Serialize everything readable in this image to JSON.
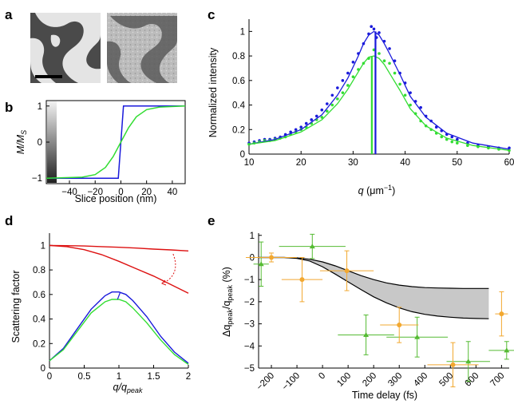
{
  "panel_labels": {
    "a": "a",
    "b": "b",
    "c": "c",
    "d": "d",
    "e": "e"
  },
  "colors": {
    "blue": "#1a1adb",
    "green": "#33dd33",
    "red": "#dd1111",
    "orange": "#f2a830",
    "dgreen": "#55bb33",
    "band": "#c8c8c8"
  },
  "chart_data": [
    {
      "panel": "b",
      "type": "line",
      "xlabel": "Slice position (nm)",
      "ylabel": "M/M_S",
      "ylabel_main": "M/M",
      "ylabel_sub": "S",
      "xlim": [
        -58,
        50
      ],
      "ylim": [
        -1.15,
        1.15
      ],
      "xticks": [
        -40,
        -20,
        0,
        20,
        40
      ],
      "xtick_labels": [
        "−40",
        "−20",
        "0",
        "20",
        "40"
      ],
      "yticks": [
        -1,
        0,
        1
      ],
      "ytick_labels": [
        "−1",
        "0",
        "1"
      ],
      "series": [
        {
          "color": "blue",
          "x": [
            -58,
            -2,
            2,
            50
          ],
          "y": [
            -1,
            -1,
            1,
            1
          ]
        },
        {
          "color": "green",
          "x": [
            -58,
            -30,
            -20,
            -12,
            -6,
            0,
            6,
            12,
            20,
            30,
            50
          ],
          "y": [
            -1,
            -0.97,
            -0.9,
            -0.7,
            -0.4,
            0,
            0.4,
            0.7,
            0.9,
            0.97,
            1
          ]
        }
      ]
    },
    {
      "panel": "c",
      "type": "scatter+line",
      "xlabel": "q (μm⁻¹)",
      "xlabel_q": "q",
      "xlabel_unit": "(μm",
      "ylabel": "Normalized intensity",
      "xlim": [
        10,
        60
      ],
      "ylim": [
        0,
        1.1
      ],
      "xticks": [
        10,
        20,
        30,
        40,
        50,
        60
      ],
      "xtick_labels": [
        "10",
        "20",
        "30",
        "40",
        "50",
        "60"
      ],
      "yticks": [
        0,
        0.2,
        0.4,
        0.6,
        0.8,
        1
      ],
      "ytick_labels": [
        "0",
        "0.2",
        "0.4",
        "0.6",
        "0.8",
        "1"
      ],
      "peak_lines": [
        {
          "color": "blue",
          "x": 34.3,
          "y": 1.0
        },
        {
          "color": "green",
          "x": 33.6,
          "y": 0.8
        }
      ],
      "series": [
        {
          "color": "blue",
          "kind": "fit",
          "x": [
            10,
            15,
            20,
            24,
            27,
            29,
            31,
            32,
            33,
            34,
            35,
            36,
            37,
            39,
            41,
            44,
            48,
            53,
            60
          ],
          "y": [
            0.08,
            0.12,
            0.2,
            0.32,
            0.48,
            0.62,
            0.8,
            0.9,
            0.97,
            1.0,
            0.97,
            0.9,
            0.82,
            0.65,
            0.47,
            0.3,
            0.17,
            0.09,
            0.04
          ]
        },
        {
          "color": "green",
          "kind": "fit",
          "x": [
            10,
            15,
            20,
            24,
            27,
            29,
            31,
            32,
            33,
            34,
            35,
            36,
            37,
            39,
            41,
            44,
            48,
            53,
            60
          ],
          "y": [
            0.08,
            0.11,
            0.18,
            0.28,
            0.41,
            0.53,
            0.67,
            0.74,
            0.79,
            0.8,
            0.78,
            0.73,
            0.66,
            0.52,
            0.37,
            0.23,
            0.13,
            0.07,
            0.03
          ]
        },
        {
          "color": "blue",
          "kind": "points",
          "x": [
            10,
            11,
            12,
            13,
            14,
            15,
            16,
            17,
            18,
            19,
            20,
            21,
            22,
            23,
            24,
            25,
            26,
            27,
            28,
            29,
            30,
            31,
            32,
            33,
            33.5,
            34,
            34.5,
            35,
            36,
            37,
            38,
            39,
            40,
            41,
            42,
            43,
            44,
            45,
            46,
            47,
            48,
            49,
            50,
            52,
            54,
            56,
            58,
            60
          ],
          "y": [
            0.09,
            0.1,
            0.11,
            0.12,
            0.12,
            0.13,
            0.14,
            0.16,
            0.18,
            0.2,
            0.22,
            0.25,
            0.28,
            0.31,
            0.36,
            0.41,
            0.48,
            0.54,
            0.6,
            0.66,
            0.75,
            0.82,
            0.9,
            0.98,
            1.04,
            1.02,
            0.95,
            0.99,
            0.92,
            0.86,
            0.76,
            0.66,
            0.58,
            0.5,
            0.43,
            0.38,
            0.31,
            0.27,
            0.22,
            0.19,
            0.16,
            0.14,
            0.12,
            0.09,
            0.07,
            0.06,
            0.05,
            0.05
          ]
        },
        {
          "color": "green",
          "kind": "points",
          "x": [
            10,
            11,
            12,
            13,
            14,
            15,
            16,
            17,
            18,
            19,
            20,
            21,
            22,
            23,
            24,
            25,
            26,
            27,
            28,
            29,
            30,
            31,
            32,
            33,
            34,
            35,
            36,
            37,
            38,
            39,
            40,
            41,
            42,
            43,
            44,
            45,
            46,
            47,
            48,
            49,
            50,
            52,
            54,
            56,
            58,
            60
          ],
          "y": [
            0.08,
            0.09,
            0.1,
            0.11,
            0.11,
            0.12,
            0.13,
            0.14,
            0.16,
            0.18,
            0.2,
            0.22,
            0.25,
            0.28,
            0.3,
            0.35,
            0.4,
            0.45,
            0.5,
            0.56,
            0.63,
            0.69,
            0.74,
            0.78,
            0.85,
            0.82,
            0.76,
            0.74,
            0.66,
            0.57,
            0.48,
            0.4,
            0.33,
            0.27,
            0.23,
            0.2,
            0.17,
            0.14,
            0.12,
            0.1,
            0.09,
            0.07,
            0.06,
            0.05,
            0.04,
            0.03
          ]
        }
      ]
    },
    {
      "panel": "d",
      "type": "line",
      "xlabel": "q/q_peak",
      "xlabel_main": "q/q",
      "xlabel_sub": "peak",
      "ylabel": "Scattering factor",
      "xlim": [
        0,
        2
      ],
      "ylim": [
        0,
        1.1
      ],
      "xticks": [
        0,
        0.5,
        1,
        1.5,
        2
      ],
      "xtick_labels": [
        "0",
        "0.5",
        "1",
        "1.5",
        "2"
      ],
      "yticks": [
        0,
        0.2,
        0.4,
        0.6,
        0.8,
        1
      ],
      "ytick_labels": [
        "0",
        "0.2",
        "0.4",
        "0.6",
        "0.8",
        "1"
      ],
      "series": [
        {
          "color": "red",
          "x": [
            0,
            0.25,
            0.5,
            0.75,
            1,
            1.25,
            1.5,
            1.75,
            2
          ],
          "y": [
            1,
            0.998,
            0.995,
            0.99,
            0.985,
            0.978,
            0.97,
            0.963,
            0.955
          ]
        },
        {
          "color": "red",
          "x": [
            0,
            0.25,
            0.5,
            0.75,
            1,
            1.25,
            1.5,
            1.75,
            2
          ],
          "y": [
            1,
            0.99,
            0.965,
            0.925,
            0.87,
            0.81,
            0.75,
            0.68,
            0.61
          ]
        },
        {
          "color": "blue",
          "x": [
            0,
            0.2,
            0.4,
            0.6,
            0.8,
            0.9,
            1,
            1.1,
            1.2,
            1.4,
            1.6,
            1.8,
            2
          ],
          "y": [
            0.06,
            0.16,
            0.32,
            0.48,
            0.59,
            0.62,
            0.62,
            0.6,
            0.55,
            0.42,
            0.26,
            0.13,
            0.04
          ]
        },
        {
          "color": "green",
          "x": [
            0,
            0.2,
            0.4,
            0.6,
            0.8,
            0.9,
            1,
            1.1,
            1.2,
            1.4,
            1.6,
            1.8,
            2
          ],
          "y": [
            0.06,
            0.15,
            0.3,
            0.45,
            0.54,
            0.56,
            0.56,
            0.54,
            0.49,
            0.37,
            0.23,
            0.11,
            0.03
          ]
        }
      ]
    },
    {
      "panel": "e",
      "type": "scatter",
      "xlabel": "Time delay (fs)",
      "ylabel": "Δq_peak/q_peak (%)",
      "ylabel_pre": "Δq",
      "ylabel_sub1": "peak",
      "ylabel_mid": "/q",
      "ylabel_sub2": "peak",
      "ylabel_post": " (%)",
      "xlim": [
        -250,
        730
      ],
      "ylim": [
        -5,
        1.1
      ],
      "xticks": [
        -200,
        -100,
        0,
        100,
        200,
        300,
        400,
        500,
        600,
        700
      ],
      "xtick_labels": [
        "−200",
        "−100",
        "0",
        "100",
        "200",
        "300",
        "400",
        "500",
        "600",
        "700"
      ],
      "yticks": [
        -5,
        -4,
        -3,
        -2,
        -1,
        0,
        1
      ],
      "ytick_labels": [
        "−5",
        "−4",
        "−3",
        "−2",
        "−1",
        "0",
        "1"
      ],
      "band": {
        "x": [
          -250,
          -150,
          -100,
          -50,
          0,
          50,
          100,
          150,
          200,
          250,
          300,
          350,
          400,
          450,
          500,
          550,
          600,
          650
        ],
        "upper": [
          0,
          0,
          -0.02,
          -0.08,
          -0.2,
          -0.38,
          -0.6,
          -0.82,
          -1.0,
          -1.15,
          -1.25,
          -1.32,
          -1.36,
          -1.38,
          -1.39,
          -1.4,
          -1.4,
          -1.4
        ],
        "lower": [
          0,
          0,
          -0.04,
          -0.16,
          -0.42,
          -0.75,
          -1.1,
          -1.45,
          -1.78,
          -2.05,
          -2.28,
          -2.45,
          -2.57,
          -2.65,
          -2.7,
          -2.74,
          -2.76,
          -2.77
        ]
      },
      "series": [
        {
          "color": "dgreen",
          "points": [
            {
              "x": -240,
              "y": -0.3,
              "ex": 30,
              "ey": 1.0
            },
            {
              "x": -40,
              "y": 0.5,
              "ex": 130,
              "ey": 0.55
            },
            {
              "x": 170,
              "y": -3.5,
              "ex": 110,
              "ey": 0.9
            },
            {
              "x": 370,
              "y": -3.6,
              "ex": 120,
              "ey": 0.9
            },
            {
              "x": 570,
              "y": -4.7,
              "ex": 85,
              "ey": 0.9
            },
            {
              "x": 720,
              "y": -4.2,
              "ex": 70,
              "ey": 0.4
            }
          ]
        },
        {
          "color": "orange",
          "points": [
            {
              "x": -200,
              "y": 0.0,
              "ex": 100,
              "ey": 0.2
            },
            {
              "x": -80,
              "y": -1.0,
              "ex": 80,
              "ey": 1.0
            },
            {
              "x": 95,
              "y": -0.6,
              "ex": 105,
              "ey": 0.9
            },
            {
              "x": 300,
              "y": -3.05,
              "ex": 75,
              "ey": 0.8
            },
            {
              "x": 510,
              "y": -4.85,
              "ex": 100,
              "ey": 1.0
            },
            {
              "x": 700,
              "y": -2.55,
              "ex": 25,
              "ey": 1.0
            }
          ]
        }
      ]
    }
  ]
}
